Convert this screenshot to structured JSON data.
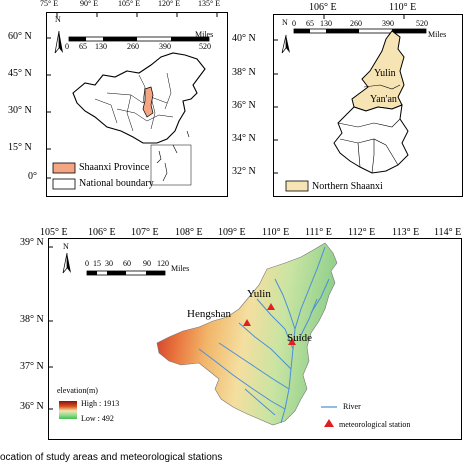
{
  "panel_a": {
    "lon_ticks": [
      "75° E",
      "90° E",
      "105° E",
      "120° E",
      "135° E"
    ],
    "lat_ticks": [
      "60° N",
      "45° N",
      "30° N",
      "15° N",
      "0°"
    ],
    "scale_numbers": [
      "0",
      "65",
      "130",
      "260",
      "390",
      "520"
    ],
    "scale_unit": "Miles",
    "north": "N",
    "legend": [
      {
        "label": "Shaanxi Province",
        "color": "#f4a582"
      },
      {
        "label": "National boundary",
        "color": "#ffffff"
      }
    ]
  },
  "panel_b": {
    "lon_ticks": [
      "106° E",
      "110° E"
    ],
    "lat_ticks": [
      "40° N",
      "38° N",
      "36° N",
      "34° N",
      "32° N"
    ],
    "scale_numbers": [
      "0",
      "65",
      "130",
      "260",
      "390",
      "520"
    ],
    "scale_unit": "Miles",
    "north": "N",
    "region_labels": [
      "Yulin",
      "Yan'an"
    ],
    "legend": [
      {
        "label": "Northern Shaanxi",
        "color": "#f7e4b5"
      }
    ]
  },
  "panel_c": {
    "lon_ticks": [
      "105° E",
      "106° E",
      "107° E",
      "108° E",
      "109° E",
      "110° E",
      "111° E",
      "112° E",
      "113° E",
      "114° E"
    ],
    "lat_ticks": [
      "39° N",
      "38° N",
      "37° N",
      "36° N"
    ],
    "scale_numbers": [
      "0",
      "15",
      "30",
      "60",
      "90",
      "120"
    ],
    "scale_unit": "Miles",
    "north": "N",
    "stations": [
      "Yulin",
      "Hengshan",
      "Suide"
    ],
    "elevation": {
      "title": "elevation(m)",
      "high": "High : 1913",
      "low": "Low : 492"
    },
    "legend": [
      {
        "label": "River",
        "color": "#4a8fd9"
      },
      {
        "label": "meteorological station",
        "color": "#e02020"
      }
    ]
  },
  "caption": "ocation of study areas and meteorological stations"
}
